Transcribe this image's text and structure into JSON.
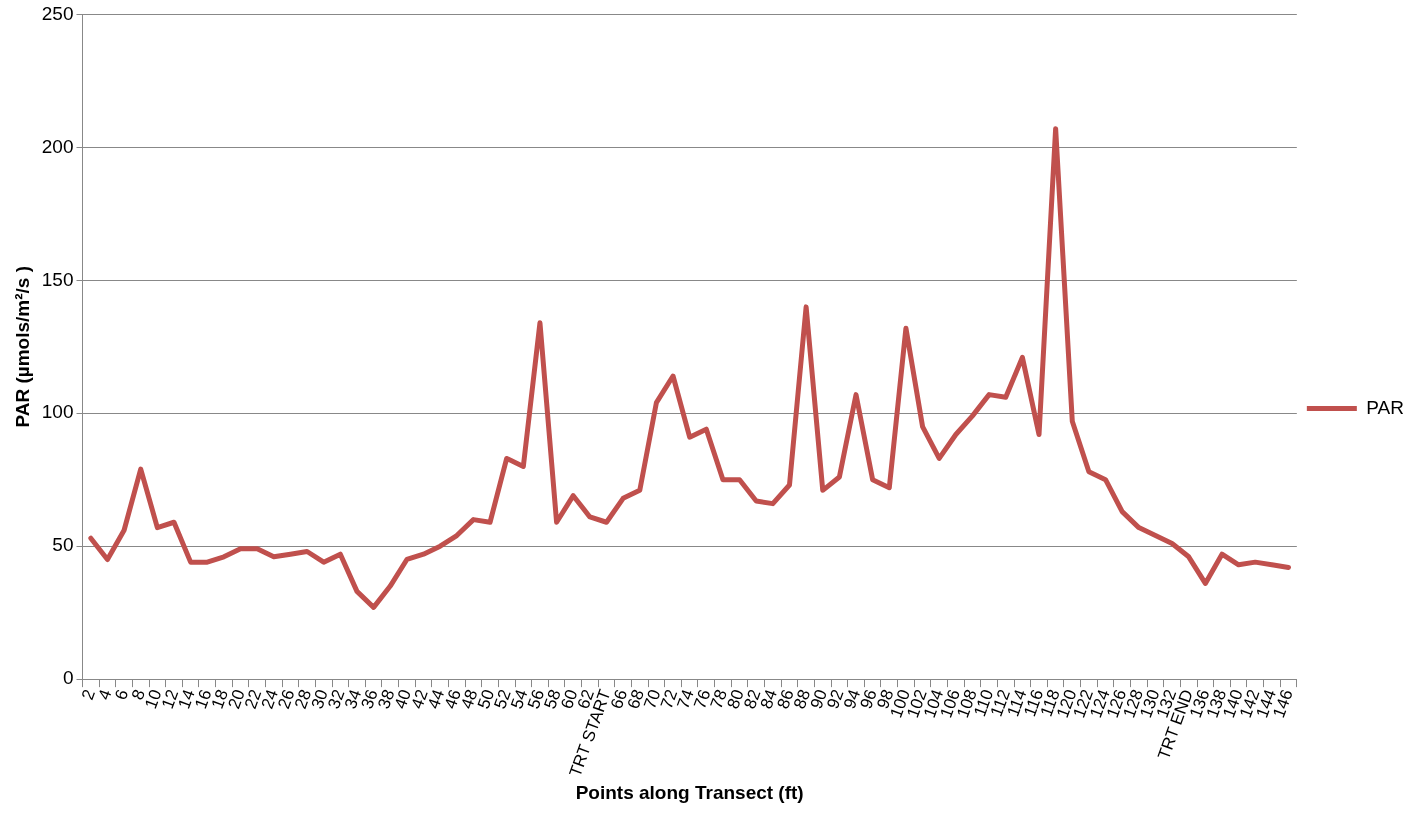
{
  "chart_data": {
    "type": "line",
    "xlabel": "Points along Transect (ft)",
    "ylabel": "PAR (µmols/m²/s )",
    "categories": [
      "2",
      "4",
      "6",
      "8",
      "10",
      "12",
      "14",
      "16",
      "18",
      "20",
      "22",
      "24",
      "26",
      "28",
      "30",
      "32",
      "34",
      "36",
      "38",
      "40",
      "42",
      "44",
      "46",
      "48",
      "50",
      "52",
      "54",
      "56",
      "58",
      "60",
      "62",
      "TRT START",
      "66",
      "68",
      "70",
      "72",
      "74",
      "76",
      "78",
      "80",
      "82",
      "84",
      "86",
      "88",
      "90",
      "92",
      "94",
      "96",
      "98",
      "100",
      "102",
      "104",
      "106",
      "108",
      "110",
      "112",
      "114",
      "116",
      "118",
      "120",
      "122",
      "124",
      "126",
      "128",
      "130",
      "132",
      "TRT END",
      "136",
      "138",
      "140",
      "142",
      "144",
      "146"
    ],
    "series": [
      {
        "name": "PAR",
        "color": "#c0504d",
        "values": [
          53,
          45,
          56,
          79,
          57,
          59,
          44,
          44,
          46,
          49,
          49,
          46,
          47,
          48,
          44,
          47,
          33,
          27,
          35,
          45,
          47,
          50,
          54,
          60,
          59,
          83,
          80,
          134,
          59,
          69,
          61,
          59,
          68,
          71,
          104,
          114,
          91,
          94,
          75,
          75,
          67,
          66,
          73,
          140,
          71,
          76,
          107,
          75,
          72,
          132,
          95,
          83,
          92,
          99,
          107,
          106,
          121,
          92,
          207,
          97,
          78,
          75,
          63,
          57,
          54,
          51,
          46,
          36,
          47,
          43,
          44,
          43,
          42
        ]
      }
    ],
    "ylim": [
      0,
      250
    ],
    "yticks": [
      0,
      50,
      100,
      150,
      200,
      250
    ],
    "grid": "y",
    "legend": "right",
    "marker": "none",
    "line_style": "solid"
  }
}
